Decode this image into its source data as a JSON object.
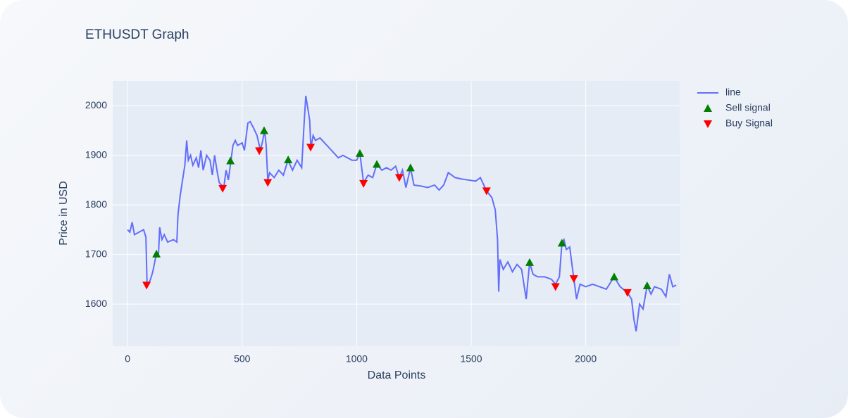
{
  "chart_data": {
    "type": "line",
    "title": "ETHUSDT Graph",
    "x_label": "Data Points",
    "y_label": "Price in USD",
    "xlim": [
      -65,
      2410
    ],
    "ylim": [
      1515,
      2050
    ],
    "xticks": [
      0,
      500,
      1000,
      1500,
      2000
    ],
    "yticks": [
      1600,
      1700,
      1800,
      1900,
      2000
    ],
    "grid": true,
    "series": [
      {
        "name": "line",
        "type": "line",
        "color": "#636efa",
        "x": [
          0,
          10,
          20,
          30,
          50,
          70,
          80,
          85,
          90,
          100,
          110,
          125,
          135,
          140,
          150,
          160,
          175,
          200,
          215,
          220,
          230,
          240,
          250,
          258,
          265,
          275,
          285,
          300,
          310,
          320,
          330,
          345,
          360,
          370,
          380,
          390,
          400,
          410,
          420,
          430,
          440,
          450,
          460,
          470,
          480,
          500,
          510,
          525,
          535,
          550,
          565,
          580,
          590,
          598,
          605,
          612,
          620,
          640,
          660,
          680,
          700,
          720,
          740,
          760,
          770,
          778,
          785,
          795,
          800,
          810,
          820,
          840,
          860,
          880,
          900,
          920,
          940,
          960,
          980,
          1000,
          1014,
          1030,
          1050,
          1070,
          1088,
          1110,
          1130,
          1150,
          1170,
          1186,
          1200,
          1215,
          1235,
          1250,
          1280,
          1310,
          1340,
          1360,
          1380,
          1400,
          1430,
          1460,
          1490,
          1520,
          1540,
          1567,
          1590,
          1605,
          1615,
          1620,
          1625,
          1640,
          1660,
          1680,
          1700,
          1720,
          1740,
          1755,
          1770,
          1790,
          1820,
          1850,
          1868,
          1885,
          1896,
          1905,
          1915,
          1930,
          1948,
          1960,
          1975,
          2000,
          2030,
          2060,
          2090,
          2124,
          2150,
          2182,
          2200,
          2210,
          2220,
          2235,
          2250,
          2268,
          2285,
          2300,
          2330,
          2350,
          2365,
          2380,
          2395
        ],
        "values": [
          1750,
          1745,
          1765,
          1740,
          1745,
          1750,
          1735,
          1640,
          1640,
          1650,
          1665,
          1700,
          1700,
          1755,
          1730,
          1740,
          1725,
          1730,
          1725,
          1780,
          1820,
          1850,
          1880,
          1930,
          1890,
          1900,
          1880,
          1895,
          1875,
          1910,
          1870,
          1900,
          1890,
          1860,
          1900,
          1870,
          1845,
          1840,
          1835,
          1870,
          1850,
          1885,
          1920,
          1930,
          1920,
          1925,
          1910,
          1965,
          1968,
          1955,
          1940,
          1910,
          1930,
          1950,
          1920,
          1850,
          1865,
          1855,
          1870,
          1860,
          1890,
          1870,
          1890,
          1875,
          1960,
          2020,
          2000,
          1970,
          1915,
          1940,
          1930,
          1935,
          1925,
          1915,
          1905,
          1895,
          1900,
          1895,
          1890,
          1890,
          1904,
          1845,
          1860,
          1855,
          1882,
          1870,
          1875,
          1870,
          1878,
          1855,
          1870,
          1835,
          1875,
          1840,
          1838,
          1835,
          1840,
          1830,
          1840,
          1865,
          1855,
          1852,
          1850,
          1848,
          1855,
          1828,
          1815,
          1790,
          1730,
          1625,
          1690,
          1670,
          1685,
          1665,
          1680,
          1670,
          1610,
          1684,
          1660,
          1655,
          1655,
          1650,
          1640,
          1655,
          1723,
          1730,
          1710,
          1715,
          1651,
          1610,
          1640,
          1635,
          1640,
          1635,
          1630,
          1655,
          1635,
          1623,
          1610,
          1570,
          1545,
          1600,
          1590,
          1637,
          1620,
          1635,
          1630,
          1615,
          1660,
          1635,
          1638
        ]
      },
      {
        "name": "Sell signal",
        "type": "scatter",
        "marker": "triangle-up",
        "color": "#008000",
        "x": [
          126,
          449,
          596,
          701,
          1014,
          1088,
          1235,
          1755,
          1896,
          2124,
          2268
        ],
        "values": [
          1701,
          1889,
          1950,
          1891,
          1904,
          1882,
          1875,
          1684,
          1723,
          1655,
          1637
        ]
      },
      {
        "name": "Buy Signal",
        "type": "scatter",
        "marker": "triangle-down",
        "color": "#ff0000",
        "x": [
          83,
          415,
          575,
          612,
          799,
          1030,
          1186,
          1567,
          1868,
          1948,
          2182
        ],
        "values": [
          1638,
          1833,
          1909,
          1845,
          1916,
          1843,
          1855,
          1828,
          1635,
          1651,
          1623
        ]
      }
    ]
  }
}
